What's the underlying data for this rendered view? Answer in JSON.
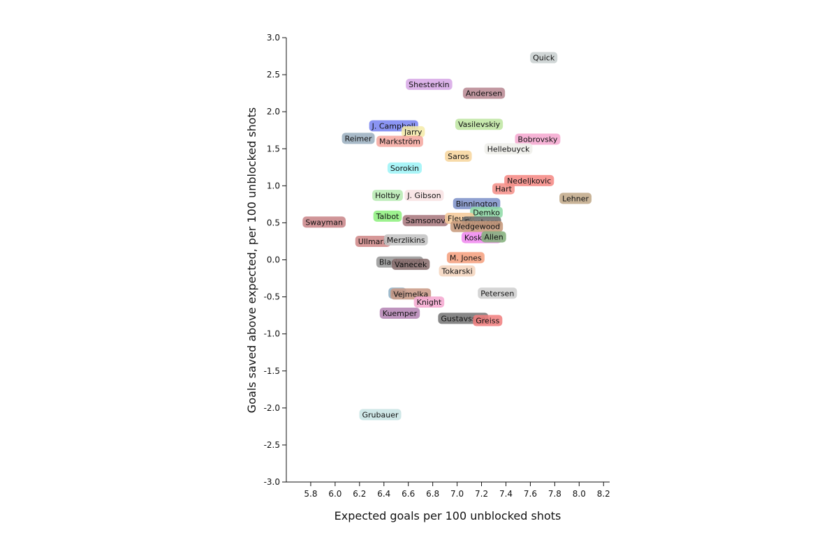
{
  "chart_data": {
    "type": "scatter",
    "xlabel": "Expected goals per 100 unblocked shots",
    "ylabel": "Goals saved above expected, per 100 unblocked shots",
    "xlim": [
      5.6,
      8.25
    ],
    "ylim": [
      -3.0,
      3.0
    ],
    "x_ticks": [
      "5.8",
      "6.0",
      "6.2",
      "6.4",
      "6.6",
      "6.8",
      "7.0",
      "7.2",
      "7.4",
      "7.6",
      "7.8",
      "8.0",
      "8.2"
    ],
    "y_ticks": [
      "3.0",
      "2.5",
      "2.0",
      "1.5",
      "1.0",
      "0.5",
      "0.0",
      "-0.5",
      "-1.0",
      "-1.5",
      "-2.0",
      "-2.5",
      "-3.0"
    ],
    "grid": false,
    "points": [
      {
        "name": "Quick",
        "x": 7.71,
        "y": 2.73,
        "color": "#c9d0d0"
      },
      {
        "name": "Shesterkin",
        "x": 6.77,
        "y": 2.37,
        "color": "#d7a8e6"
      },
      {
        "name": "Andersen",
        "x": 7.22,
        "y": 2.25,
        "color": "#b98a94"
      },
      {
        "name": "J. Campbell",
        "x": 6.48,
        "y": 1.81,
        "color": "#7a85f0"
      },
      {
        "name": "Jarry",
        "x": 6.64,
        "y": 1.73,
        "color": "#f5ecaa"
      },
      {
        "name": "Vasilevskiy",
        "x": 7.18,
        "y": 1.83,
        "color": "#bfe6a3"
      },
      {
        "name": "Reimer",
        "x": 6.19,
        "y": 1.64,
        "color": "#9cb0c0"
      },
      {
        "name": "Markström",
        "x": 6.53,
        "y": 1.6,
        "color": "#f5a8a0"
      },
      {
        "name": "Bobrovsky",
        "x": 7.66,
        "y": 1.63,
        "color": "#f5a8d0"
      },
      {
        "name": "Hellebuyck",
        "x": 7.42,
        "y": 1.5,
        "color": "#efefea"
      },
      {
        "name": "Saros",
        "x": 7.01,
        "y": 1.4,
        "color": "#f7d69e"
      },
      {
        "name": "Sorokin",
        "x": 6.57,
        "y": 1.24,
        "color": "#9ef4f7"
      },
      {
        "name": "Nedeljkovic",
        "x": 7.59,
        "y": 1.07,
        "color": "#f58a85"
      },
      {
        "name": "Hart",
        "x": 7.38,
        "y": 0.96,
        "color": "#f5918a"
      },
      {
        "name": "Holtby",
        "x": 6.43,
        "y": 0.87,
        "color": "#b8ebb4"
      },
      {
        "name": "J. Gibson",
        "x": 6.73,
        "y": 0.87,
        "color": "#f8e2e4"
      },
      {
        "name": "Lehner",
        "x": 7.97,
        "y": 0.83,
        "color": "#c2aa8a"
      },
      {
        "name": "Binnington",
        "x": 7.16,
        "y": 0.76,
        "color": "#7f93c9"
      },
      {
        "name": "Demko",
        "x": 7.24,
        "y": 0.64,
        "color": "#8fdba7"
      },
      {
        "name": "Talbot",
        "x": 6.43,
        "y": 0.59,
        "color": "#8ff07f"
      },
      {
        "name": "Swayman",
        "x": 5.91,
        "y": 0.51,
        "color": "#c9868a"
      },
      {
        "name": "Samsonov",
        "x": 6.74,
        "y": 0.53,
        "color": "#a8797e"
      },
      {
        "name": "Fleury",
        "x": 7.02,
        "y": 0.56,
        "color": "#f5c99a"
      },
      {
        "name": "Forsberg",
        "x": 7.2,
        "y": 0.51,
        "color": "#6b6b6b"
      },
      {
        "name": "Wedgewood",
        "x": 7.16,
        "y": 0.45,
        "color": "#c79a7c"
      },
      {
        "name": "Koskinen",
        "x": 7.2,
        "y": 0.3,
        "color": "#f08aef"
      },
      {
        "name": "Allen",
        "x": 7.3,
        "y": 0.31,
        "color": "#84b07c"
      },
      {
        "name": "Ullmark",
        "x": 6.31,
        "y": 0.25,
        "color": "#d08a8a"
      },
      {
        "name": "Merzlikins",
        "x": 6.58,
        "y": 0.27,
        "color": "#c4c4c4"
      },
      {
        "name": "M. Jones",
        "x": 7.07,
        "y": 0.03,
        "color": "#f5a080"
      },
      {
        "name": "Blackwood",
        "x": 6.53,
        "y": -0.03,
        "color": "#9a9a9a"
      },
      {
        "name": "Vanecek",
        "x": 6.62,
        "y": -0.06,
        "color": "#8a7070"
      },
      {
        "name": "Tokarski",
        "x": 7.0,
        "y": -0.15,
        "color": "#f5d6bf"
      },
      {
        "name": "Hill",
        "x": 6.51,
        "y": -0.45,
        "color": "#8fb0c5"
      },
      {
        "name": "Vejmelka",
        "x": 6.62,
        "y": -0.46,
        "color": "#c99a86"
      },
      {
        "name": "Petersen",
        "x": 7.33,
        "y": -0.45,
        "color": "#cfcfcf"
      },
      {
        "name": "Knight",
        "x": 6.77,
        "y": -0.57,
        "color": "#f5a8d0"
      },
      {
        "name": "Kuemper",
        "x": 6.53,
        "y": -0.72,
        "color": "#b585b5"
      },
      {
        "name": "Gustavsson",
        "x": 7.05,
        "y": -0.79,
        "color": "#767676"
      },
      {
        "name": "Greiss",
        "x": 7.25,
        "y": -0.82,
        "color": "#f08080"
      },
      {
        "name": "Grubauer",
        "x": 6.37,
        "y": -2.09,
        "color": "#c8e4e4"
      }
    ]
  }
}
